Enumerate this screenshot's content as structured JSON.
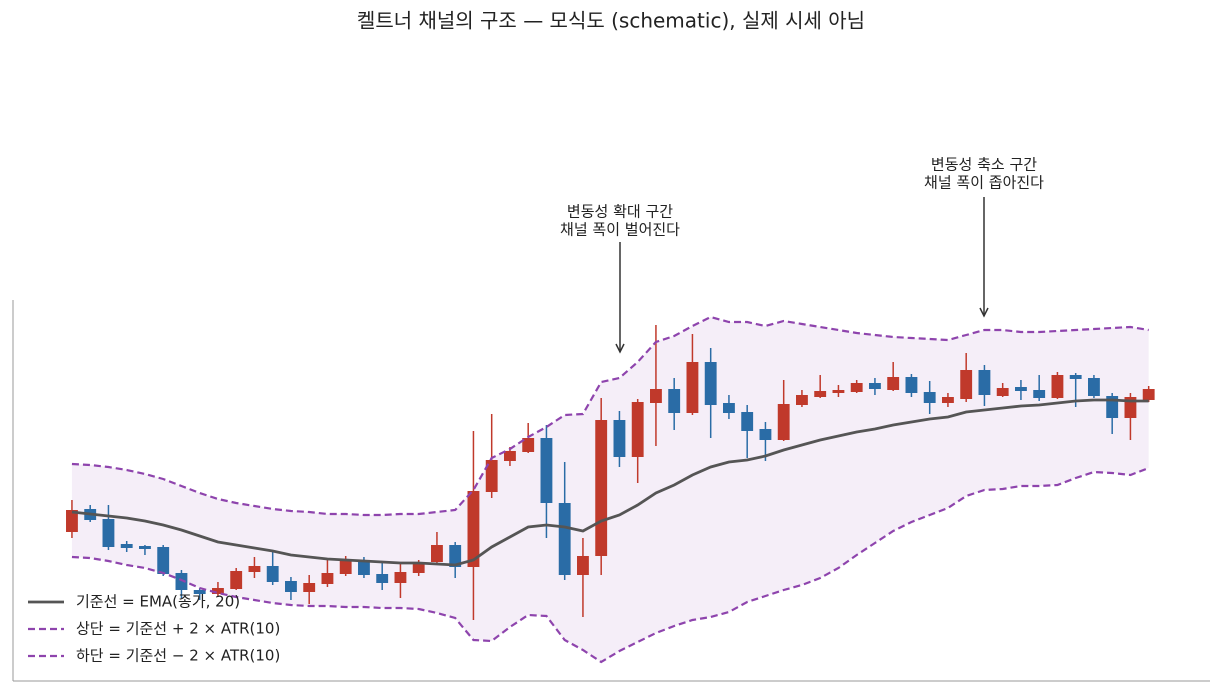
{
  "chart_data": {
    "type": "candlestick",
    "title": "켈트너 채널의 구조 — 모식도 (schematic), 실제 시세 아님",
    "x": [
      0,
      1,
      2,
      3,
      4,
      5,
      6,
      7,
      8,
      9,
      10,
      11,
      12,
      13,
      14,
      15,
      16,
      17,
      18,
      19,
      20,
      21,
      22,
      23,
      24,
      25,
      26,
      27,
      28,
      29,
      30,
      31,
      32,
      33,
      34,
      35,
      36,
      37,
      38,
      39,
      40,
      41,
      42,
      43,
      44,
      45,
      46,
      47,
      48,
      49,
      50,
      51,
      52,
      53,
      54,
      55,
      56,
      57,
      58,
      59
    ],
    "xlim": [
      -3.23,
      62.36
    ],
    "ylim": [
      0,
      381
    ],
    "up_color": "#c0392b",
    "down_color": "#2a6ca6",
    "open": [
      149,
      172,
      162,
      137,
      135,
      134,
      108,
      91,
      87,
      92,
      109,
      115,
      100,
      89,
      97,
      107,
      121,
      107,
      98,
      108,
      119,
      136,
      114,
      189,
      220,
      229,
      243,
      178,
      106,
      125,
      261,
      224,
      278,
      292,
      268,
      319,
      278,
      269,
      252,
      241,
      276,
      284,
      288,
      289,
      298,
      291,
      304,
      289,
      278,
      282,
      311,
      285,
      294,
      291,
      283,
      306,
      303,
      285,
      263,
      281
    ],
    "high": [
      181,
      176,
      176,
      140,
      136,
      136,
      111,
      93,
      99,
      113,
      124,
      130,
      104,
      106,
      121,
      125,
      124,
      118,
      118,
      121,
      149,
      139,
      250,
      267,
      234,
      258,
      256,
      219,
      143,
      283,
      270,
      282,
      356,
      303,
      347,
      333,
      286,
      276,
      259,
      301,
      291,
      306,
      296,
      301,
      303,
      319,
      307,
      300,
      288,
      328,
      316,
      298,
      301,
      306,
      309,
      308,
      306,
      288,
      288,
      295
    ],
    "low": [
      143,
      159,
      131,
      129,
      126,
      105,
      83,
      81,
      84,
      91,
      103,
      96,
      81,
      77,
      94,
      105,
      103,
      91,
      83,
      105,
      116,
      103,
      61,
      183,
      215,
      228,
      143,
      101,
      64,
      106,
      214,
      198,
      235,
      251,
      266,
      243,
      262,
      223,
      220,
      240,
      274,
      283,
      284,
      288,
      286,
      290,
      284,
      267,
      274,
      279,
      275,
      284,
      281,
      280,
      282,
      274,
      283,
      247,
      241,
      279
    ],
    "close": [
      171,
      161,
      134,
      133,
      132,
      107,
      91,
      87,
      93,
      110,
      115,
      99,
      89,
      98,
      108,
      121,
      106,
      98,
      109,
      118,
      136,
      114,
      190,
      221,
      230,
      243,
      178,
      106,
      125,
      261,
      224,
      279,
      292,
      268,
      319,
      276,
      268,
      250,
      241,
      277,
      286,
      290,
      291,
      298,
      292,
      304,
      288,
      278,
      284,
      311,
      286,
      293,
      290,
      283,
      306,
      302,
      285,
      263,
      284,
      292
    ],
    "series": [
      {
        "name": "기준선 = EMA(종가, 20)",
        "color": "#555555",
        "style": "solid",
        "values": [
          169,
          167,
          165,
          163,
          160,
          156,
          151,
          145,
          139,
          136,
          133,
          130,
          126,
          124,
          122,
          121,
          120,
          119,
          118,
          118,
          117,
          116,
          121,
          134,
          144,
          154,
          156,
          154,
          150,
          160,
          166,
          176,
          188,
          196,
          206,
          214,
          219,
          221,
          225,
          231,
          236,
          241,
          245,
          249,
          252,
          256,
          259,
          262,
          264,
          269,
          271,
          273,
          275,
          276,
          278,
          280,
          281,
          281,
          280,
          280
        ]
      },
      {
        "name": "상단 = 기준선 + 2 × ATR(10)",
        "color": "#8e44ad",
        "style": "dashed",
        "values": [
          217,
          216,
          214,
          211,
          207,
          202,
          195,
          188,
          182,
          178,
          175,
          172,
          170,
          169,
          167,
          167,
          166,
          166,
          167,
          167,
          169,
          171,
          191,
          223,
          232,
          244,
          254,
          266,
          267,
          299,
          303,
          319,
          339,
          345,
          355,
          364,
          359,
          359,
          355,
          360,
          357,
          354,
          351,
          348,
          346,
          344,
          343,
          342,
          341,
          346,
          351,
          351,
          349,
          349,
          350,
          351,
          352,
          353,
          354,
          351
        ]
      },
      {
        "name": "하단 = 기준선 − 2 × ATR(10)",
        "color": "#8e44ad",
        "style": "dashed",
        "values": [
          124,
          123,
          120,
          116,
          113,
          108,
          101,
          93,
          88,
          84,
          81,
          78,
          76,
          75,
          75,
          74,
          74,
          73,
          73,
          72,
          68,
          63,
          41,
          40,
          54,
          66,
          65,
          41,
          31,
          19,
          30,
          39,
          48,
          55,
          61,
          64,
          69,
          79,
          85,
          91,
          96,
          103,
          113,
          126,
          138,
          150,
          159,
          166,
          173,
          185,
          191,
          192,
          195,
          195,
          196,
          203,
          209,
          208,
          206,
          213
        ]
      }
    ],
    "channel_fill": "#f5eef8",
    "legend": "lower left",
    "annotations": [
      {
        "lines": [
          "변동성 확대 구간",
          "채널 폭이 벌어진다"
        ]
      },
      {
        "lines": [
          "변동성 축소 구간",
          "채널 폭이 좁아진다"
        ]
      }
    ]
  }
}
